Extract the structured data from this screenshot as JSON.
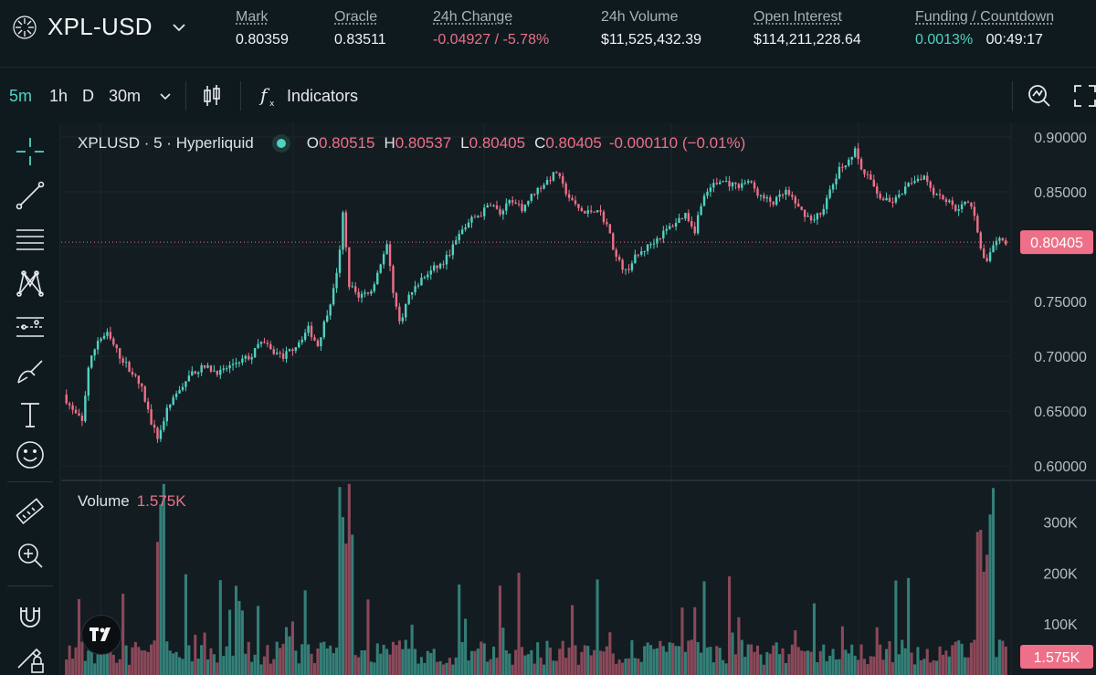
{
  "header": {
    "pair": "XPL-USD",
    "stats": [
      {
        "label": "Mark",
        "value": "0.80359",
        "tone": ""
      },
      {
        "label": "Oracle",
        "value": "0.83511",
        "tone": ""
      },
      {
        "label": "24h Change",
        "value": "-0.04927 / -5.78%",
        "tone": "neg"
      },
      {
        "label": "24h Volume",
        "value": "$11,525,432.39",
        "tone": ""
      },
      {
        "label": "Open Interest",
        "value": "$114,211,228.64",
        "tone": ""
      },
      {
        "label": "Funding / Countdown",
        "value": "0.0013%",
        "value2": "00:49:17",
        "tone": "pos"
      }
    ]
  },
  "toolbar": {
    "intervals": [
      "5m",
      "1h",
      "D",
      "30m"
    ],
    "active_interval": "5m",
    "indicators_label": "Indicators"
  },
  "legend": {
    "title": "XPLUSD · 5 · Hyperliquid",
    "o_key": "O",
    "o": "0.80515",
    "h_key": "H",
    "h": "0.80537",
    "l_key": "L",
    "l": "0.80405",
    "c_key": "C",
    "c": "0.80405",
    "change": "-0.000110 (−0.01%)"
  },
  "volume_legend": {
    "title": "Volume",
    "value": "1.575K"
  },
  "colors": {
    "up": "#50d2c1",
    "down": "#ed7088",
    "bg": "#131c21"
  },
  "chart_data": {
    "type": "candlestick",
    "price_axis": {
      "ticks": [
        "0.90000",
        "0.85000",
        "0.80000",
        "0.75000",
        "0.70000",
        "0.65000",
        "0.60000"
      ],
      "range": [
        0.6,
        0.9
      ],
      "last_price_label": "0.80405",
      "last_price": 0.80405
    },
    "volume_axis": {
      "ticks": [
        "300K",
        "200K",
        "100K"
      ],
      "range": [
        0,
        380000
      ],
      "last_volume_label": "1.575K"
    },
    "price_path": [
      [
        0,
        0.665
      ],
      [
        3,
        0.65
      ],
      [
        6,
        0.64
      ],
      [
        8,
        0.69
      ],
      [
        11,
        0.715
      ],
      [
        14,
        0.72
      ],
      [
        18,
        0.7
      ],
      [
        22,
        0.685
      ],
      [
        25,
        0.67
      ],
      [
        28,
        0.64
      ],
      [
        30,
        0.625
      ],
      [
        33,
        0.65
      ],
      [
        37,
        0.67
      ],
      [
        41,
        0.685
      ],
      [
        45,
        0.69
      ],
      [
        50,
        0.685
      ],
      [
        55,
        0.695
      ],
      [
        60,
        0.7
      ],
      [
        63,
        0.715
      ],
      [
        66,
        0.705
      ],
      [
        70,
        0.7
      ],
      [
        74,
        0.71
      ],
      [
        78,
        0.725
      ],
      [
        81,
        0.71
      ],
      [
        84,
        0.74
      ],
      [
        86,
        0.76
      ],
      [
        88,
        0.795
      ],
      [
        89,
        0.83
      ],
      [
        91,
        0.765
      ],
      [
        94,
        0.755
      ],
      [
        98,
        0.76
      ],
      [
        101,
        0.785
      ],
      [
        103,
        0.8
      ],
      [
        105,
        0.76
      ],
      [
        107,
        0.73
      ],
      [
        110,
        0.755
      ],
      [
        114,
        0.77
      ],
      [
        118,
        0.78
      ],
      [
        121,
        0.785
      ],
      [
        124,
        0.8
      ],
      [
        127,
        0.815
      ],
      [
        130,
        0.825
      ],
      [
        133,
        0.83
      ],
      [
        136,
        0.84
      ],
      [
        139,
        0.83
      ],
      [
        142,
        0.84
      ],
      [
        146,
        0.835
      ],
      [
        150,
        0.85
      ],
      [
        154,
        0.86
      ],
      [
        157,
        0.868
      ],
      [
        159,
        0.855
      ],
      [
        162,
        0.84
      ],
      [
        166,
        0.83
      ],
      [
        170,
        0.835
      ],
      [
        173,
        0.82
      ],
      [
        176,
        0.79
      ],
      [
        179,
        0.777
      ],
      [
        182,
        0.79
      ],
      [
        186,
        0.8
      ],
      [
        190,
        0.81
      ],
      [
        194,
        0.82
      ],
      [
        198,
        0.83
      ],
      [
        201,
        0.815
      ],
      [
        203,
        0.84
      ],
      [
        206,
        0.855
      ],
      [
        210,
        0.86
      ],
      [
        214,
        0.855
      ],
      [
        218,
        0.86
      ],
      [
        222,
        0.845
      ],
      [
        226,
        0.84
      ],
      [
        230,
        0.85
      ],
      [
        234,
        0.835
      ],
      [
        238,
        0.825
      ],
      [
        241,
        0.83
      ],
      [
        244,
        0.85
      ],
      [
        247,
        0.87
      ],
      [
        250,
        0.88
      ],
      [
        252,
        0.887
      ],
      [
        254,
        0.87
      ],
      [
        257,
        0.86
      ],
      [
        260,
        0.845
      ],
      [
        263,
        0.84
      ],
      [
        266,
        0.845
      ],
      [
        270,
        0.86
      ],
      [
        274,
        0.865
      ],
      [
        277,
        0.85
      ],
      [
        280,
        0.845
      ],
      [
        284,
        0.835
      ],
      [
        288,
        0.84
      ],
      [
        290,
        0.83
      ],
      [
        292,
        0.8
      ],
      [
        294,
        0.785
      ],
      [
        296,
        0.8
      ],
      [
        298,
        0.805
      ]
    ],
    "candle_count": 300
  }
}
